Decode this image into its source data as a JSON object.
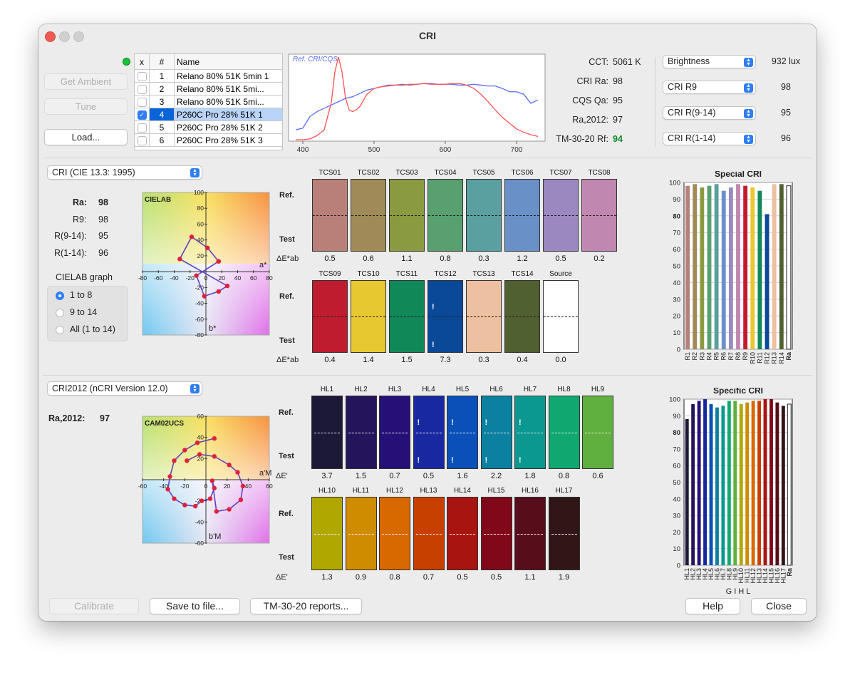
{
  "window": {
    "title": "CRI"
  },
  "left_buttons": {
    "get_ambient": "Get Ambient",
    "tune": "Tune",
    "load": "Load..."
  },
  "file_table": {
    "headers": [
      "x",
      "#",
      "Name"
    ],
    "rows": [
      {
        "checked": false,
        "num": "1",
        "name": "Relano 80% 51K 5min 1"
      },
      {
        "checked": false,
        "num": "2",
        "name": "Relano 80% 51K 5mi..."
      },
      {
        "checked": false,
        "num": "3",
        "name": "Relano 80% 51K 5mi..."
      },
      {
        "checked": true,
        "num": "4",
        "name": "P260C Pro 28% 51K 1",
        "selected": true
      },
      {
        "checked": false,
        "num": "5",
        "name": "P260C Pro 28% 51K 2"
      },
      {
        "checked": false,
        "num": "6",
        "name": "P260C Pro 28% 51K 3"
      }
    ]
  },
  "spectrum_chart": {
    "legend": "Ref. CRI/CQS",
    "x_ticks": [
      "400",
      "500",
      "600",
      "700"
    ],
    "x_range": [
      380,
      740
    ]
  },
  "metrics": [
    {
      "label": "CCT:",
      "value": "5061 K"
    },
    {
      "label": "CRI Ra:",
      "value": "98"
    },
    {
      "label": "CQS Qa:",
      "value": "95"
    },
    {
      "label": "Ra,2012:",
      "value": "97"
    },
    {
      "label": "TM-30-20 Rf:",
      "value": "94"
    }
  ],
  "metric_highlight_color": "#0a8a2a",
  "dropdowns_right": [
    {
      "label": "Brightness",
      "value": "932 lux"
    },
    {
      "label": "CRI R9",
      "value": "98"
    },
    {
      "label": "CRI R(9-14)",
      "value": "95"
    },
    {
      "label": "CRI R(1-14)",
      "value": "96"
    }
  ],
  "cri_section": {
    "method": "CRI (CIE 13.3: 1995)",
    "ra_label": "Ra:",
    "ra": "98",
    "r9_label": "R9:",
    "r9": "98",
    "r914_label": "R(9-14):",
    "r914": "95",
    "r114_label": "R(1-14):",
    "r114": "96",
    "graph_label": "CIELAB graph",
    "radio_options": [
      "1 to 8",
      "9 to 14",
      "All (1 to 14)"
    ],
    "radio_selected": 0,
    "cielab": {
      "title": "CIELAB",
      "a_label": "a*",
      "b_label": "b*",
      "ticks": [
        "-80",
        "-60",
        "-40",
        "-20",
        "0",
        "20",
        "40",
        "60",
        "80"
      ],
      "yticks": [
        "100",
        "80",
        "60",
        "40",
        "20",
        "0",
        "-20",
        "-40",
        "-60",
        "-80"
      ]
    },
    "ref_label": "Ref.",
    "test_label": "Test",
    "de_label": "ΔE*ab",
    "tcs_row1": [
      {
        "name": "TCS01",
        "color": "#b88078",
        "de": "0.5"
      },
      {
        "name": "TCS02",
        "color": "#a08a57",
        "de": "0.6"
      },
      {
        "name": "TCS03",
        "color": "#8a9a40",
        "de": "1.1"
      },
      {
        "name": "TCS04",
        "color": "#58a070",
        "de": "0.8"
      },
      {
        "name": "TCS05",
        "color": "#5aa0a0",
        "de": "0.3"
      },
      {
        "name": "TCS06",
        "color": "#6a90c8",
        "de": "1.2"
      },
      {
        "name": "TCS07",
        "color": "#9c88c0",
        "de": "0.5"
      },
      {
        "name": "TCS08",
        "color": "#c088b0",
        "de": "0.2"
      }
    ],
    "tcs_row2": [
      {
        "name": "TCS09",
        "color": "#c01c30",
        "de": "0.4"
      },
      {
        "name": "TCS10",
        "color": "#e8c830",
        "de": "1.4"
      },
      {
        "name": "TCS11",
        "color": "#108858",
        "de": "1.5"
      },
      {
        "name": "TCS12",
        "color": "#0a4898",
        "de": "7.3",
        "mark": "!"
      },
      {
        "name": "TCS13",
        "color": "#ecc0a0",
        "de": "0.3"
      },
      {
        "name": "TCS14",
        "color": "#506030",
        "de": "0.4"
      },
      {
        "name": "Source",
        "color": "#ffffff",
        "de": "0.0"
      }
    ],
    "special_cri_chart": {
      "title": "Special CRI"
    }
  },
  "cri2012_section": {
    "method": "CRI2012 (nCRI Version 12.0)",
    "ra_label": "Ra,2012:",
    "ra": "97",
    "cam": {
      "title": "CAM02UCS",
      "a_label": "a'M",
      "b_label": "b'M",
      "ticks": [
        "-60",
        "-40",
        "-20",
        "0",
        "20",
        "40",
        "60"
      ],
      "yticks": [
        "60",
        "40",
        "20",
        "0",
        "-20",
        "-40",
        "-60"
      ]
    },
    "ref_label": "Ref.",
    "test_label": "Test",
    "de_label": "ΔE'",
    "hl_row1": [
      {
        "name": "HL1",
        "color": "#1c1838",
        "de": "3.7"
      },
      {
        "name": "HL2",
        "color": "#24145c",
        "de": "1.5"
      },
      {
        "name": "HL3",
        "color": "#261078",
        "de": "0.7"
      },
      {
        "name": "HL4",
        "color": "#1828a0",
        "de": "0.5",
        "mark": "!"
      },
      {
        "name": "HL5",
        "color": "#0a50b8",
        "de": "1.6",
        "mark": "!"
      },
      {
        "name": "HL6",
        "color": "#0c80a0",
        "de": "2.2",
        "mark": "!"
      },
      {
        "name": "HL7",
        "color": "#0a9890",
        "de": "1.8",
        "mark": "!"
      },
      {
        "name": "HL8",
        "color": "#10a870",
        "de": "0.8"
      },
      {
        "name": "HL9",
        "color": "#60b040",
        "de": "0.6"
      }
    ],
    "hl_row2": [
      {
        "name": "HL10",
        "color": "#b0a800",
        "de": "1.3"
      },
      {
        "name": "HL11",
        "color": "#d08c00",
        "de": "0.9"
      },
      {
        "name": "HL12",
        "color": "#d86800",
        "de": "0.8"
      },
      {
        "name": "HL13",
        "color": "#c84000",
        "de": "0.7"
      },
      {
        "name": "HL14",
        "color": "#a81410",
        "de": "0.5"
      },
      {
        "name": "HL15",
        "color": "#800818",
        "de": "0.5"
      },
      {
        "name": "HL16",
        "color": "#580e1a",
        "de": "1.1"
      },
      {
        "name": "HL17",
        "color": "#301616",
        "de": "1.9"
      }
    ],
    "specific_cri_chart": {
      "title": "Specific CRI",
      "group_label": "G I H L"
    }
  },
  "bottom_buttons": {
    "calibrate": "Calibrate",
    "save": "Save to file...",
    "tm30": "TM-30-20 reports...",
    "help": "Help",
    "close": "Close"
  },
  "chart_data": [
    {
      "type": "bar",
      "title": "Special CRI",
      "categories": [
        "R1",
        "R2",
        "R3",
        "R4",
        "R5",
        "R6",
        "R7",
        "R8",
        "R9",
        "R10",
        "R11",
        "R12",
        "R13",
        "R14",
        "Ra"
      ],
      "values": [
        98,
        99,
        97,
        98,
        99,
        95,
        97,
        99,
        98,
        97,
        95,
        81,
        99,
        99,
        98
      ],
      "colors": [
        "#b88078",
        "#a08a57",
        "#8a9a40",
        "#58a070",
        "#5aa0a0",
        "#6a90c8",
        "#9c88c0",
        "#c088b0",
        "#c01c30",
        "#e8c830",
        "#108858",
        "#0a4898",
        "#ecc0a0",
        "#506030",
        "#ffffff"
      ],
      "ylim": [
        0,
        100
      ],
      "yticks": [
        "0",
        "10",
        "20",
        "30",
        "40",
        "50",
        "60",
        "70",
        "80",
        "90",
        "100"
      ],
      "grid": true
    },
    {
      "type": "bar",
      "title": "Specific CRI",
      "categories": [
        "HL1",
        "HL2",
        "HL3",
        "HL4",
        "HL5",
        "HL6",
        "HL7",
        "HL8",
        "HL9",
        "HL10",
        "HL11",
        "HL12",
        "HL13",
        "HL14",
        "HL15",
        "HL16",
        "HL17",
        "Ra"
      ],
      "values": [
        88,
        97,
        99,
        100,
        97,
        95,
        96,
        99,
        99,
        97,
        98,
        99,
        99,
        100,
        100,
        98,
        96,
        97
      ],
      "colors": [
        "#1c1838",
        "#24145c",
        "#261078",
        "#1828a0",
        "#0a50b8",
        "#0c80a0",
        "#0a9890",
        "#10a870",
        "#60b040",
        "#b0a800",
        "#d08c00",
        "#d86800",
        "#c84000",
        "#a81410",
        "#800818",
        "#580e1a",
        "#301616",
        "#ffffff"
      ],
      "ylim": [
        0,
        100
      ],
      "yticks": [
        "0",
        "10",
        "20",
        "30",
        "40",
        "50",
        "60",
        "70",
        "80",
        "90",
        "100"
      ],
      "grid": true
    },
    {
      "type": "line",
      "title": "",
      "xlim": [
        380,
        740
      ],
      "series": [
        {
          "name": "Ref. CRI/CQS",
          "color": "#5a6cff",
          "x": [
            390,
            400,
            410,
            420,
            430,
            440,
            450,
            460,
            470,
            480,
            490,
            500,
            510,
            520,
            530,
            540,
            550,
            560,
            570,
            580,
            590,
            600,
            610,
            620,
            630,
            640,
            650,
            660,
            670,
            680,
            690,
            700,
            710,
            720,
            730
          ],
          "y": [
            0.12,
            0.14,
            0.28,
            0.34,
            0.38,
            0.42,
            0.46,
            0.5,
            0.52,
            0.56,
            0.6,
            0.62,
            0.64,
            0.66,
            0.66,
            0.67,
            0.66,
            0.67,
            0.68,
            0.68,
            0.67,
            0.67,
            0.67,
            0.66,
            0.66,
            0.67,
            0.66,
            0.65,
            0.65,
            0.62,
            0.58,
            0.58,
            0.55,
            0.44,
            0.48
          ]
        },
        {
          "color": "#ff5050",
          "x": [
            390,
            400,
            410,
            420,
            430,
            440,
            445,
            450,
            455,
            460,
            465,
            470,
            475,
            480,
            490,
            500,
            510,
            520,
            530,
            540,
            550,
            560,
            570,
            580,
            590,
            600,
            610,
            620,
            630,
            640,
            650,
            660,
            670,
            680,
            690,
            700,
            710,
            720,
            730
          ],
          "y": [
            0.0,
            0.0,
            0.01,
            0.05,
            0.12,
            0.45,
            0.82,
            1.0,
            0.82,
            0.5,
            0.36,
            0.34,
            0.36,
            0.4,
            0.55,
            0.62,
            0.64,
            0.65,
            0.66,
            0.66,
            0.67,
            0.67,
            0.68,
            0.67,
            0.67,
            0.67,
            0.68,
            0.68,
            0.66,
            0.62,
            0.55,
            0.46,
            0.36,
            0.27,
            0.2,
            0.13,
            0.09,
            0.06,
            0.04
          ]
        }
      ]
    },
    {
      "type": "scatter",
      "title": "CIELAB",
      "xlim": [
        -80,
        80
      ],
      "ylim": [
        -80,
        100
      ],
      "series": [
        {
          "color": "#e0203a",
          "points": [
            [
              16,
              13
            ],
            [
              -12,
              -5
            ],
            [
              -2,
              -31
            ],
            [
              16,
              -25
            ],
            [
              27,
              -18
            ],
            [
              -33,
              16
            ],
            [
              -18,
              44
            ],
            [
              2,
              30
            ],
            [
              16,
              13
            ]
          ]
        }
      ]
    },
    {
      "type": "scatter",
      "title": "CAM02UCS",
      "xlim": [
        -60,
        60
      ],
      "ylim": [
        -60,
        60
      ],
      "series": [
        {
          "color": "#e0203a",
          "points": [
            [
              8,
              39
            ],
            [
              -8,
              35
            ],
            [
              -20,
              28
            ],
            [
              -30,
              18
            ],
            [
              -34,
              3
            ],
            [
              -36,
              -9
            ],
            [
              -30,
              -18
            ],
            [
              -20,
              -24
            ],
            [
              -10,
              -25
            ],
            [
              -4,
              -20
            ],
            [
              4,
              -18
            ],
            [
              8,
              -8
            ],
            [
              6,
              -1
            ],
            [
              10,
              -30
            ],
            [
              22,
              -28
            ],
            [
              33,
              -19
            ],
            [
              35,
              -6
            ],
            [
              30,
              7
            ],
            [
              22,
              14
            ],
            [
              8,
              22
            ],
            [
              -6,
              24
            ],
            [
              -18,
              18
            ]
          ]
        }
      ]
    }
  ]
}
